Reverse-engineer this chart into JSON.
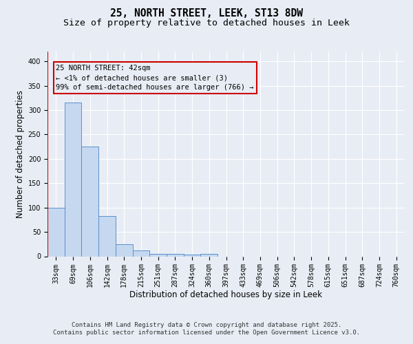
{
  "title_line1": "25, NORTH STREET, LEEK, ST13 8DW",
  "title_line2": "Size of property relative to detached houses in Leek",
  "xlabel": "Distribution of detached houses by size in Leek",
  "ylabel": "Number of detached properties",
  "categories": [
    "33sqm",
    "69sqm",
    "106sqm",
    "142sqm",
    "178sqm",
    "215sqm",
    "251sqm",
    "287sqm",
    "324sqm",
    "360sqm",
    "397sqm",
    "433sqm",
    "469sqm",
    "506sqm",
    "542sqm",
    "578sqm",
    "615sqm",
    "651sqm",
    "687sqm",
    "724sqm",
    "760sqm"
  ],
  "values": [
    100,
    315,
    225,
    82,
    25,
    12,
    5,
    5,
    4,
    5,
    0,
    0,
    0,
    0,
    0,
    0,
    0,
    0,
    0,
    0,
    0
  ],
  "bar_color": "#c5d8f0",
  "bar_edge_color": "#5b8fcc",
  "annotation_box_text": "25 NORTH STREET: 42sqm\n← <1% of detached houses are smaller (3)\n99% of semi-detached houses are larger (766) →",
  "annotation_box_edge_color": "#cc0000",
  "ylim": [
    0,
    420
  ],
  "yticks": [
    0,
    50,
    100,
    150,
    200,
    250,
    300,
    350,
    400
  ],
  "background_color": "#e8edf5",
  "plot_bg_color": "#e8edf5",
  "grid_color": "#ffffff",
  "footer_text": "Contains HM Land Registry data © Crown copyright and database right 2025.\nContains public sector information licensed under the Open Government Licence v3.0.",
  "title_fontsize": 10.5,
  "subtitle_fontsize": 9.5,
  "axis_label_fontsize": 8.5,
  "tick_fontsize": 7,
  "annotation_fontsize": 7.5,
  "footer_fontsize": 6.5
}
